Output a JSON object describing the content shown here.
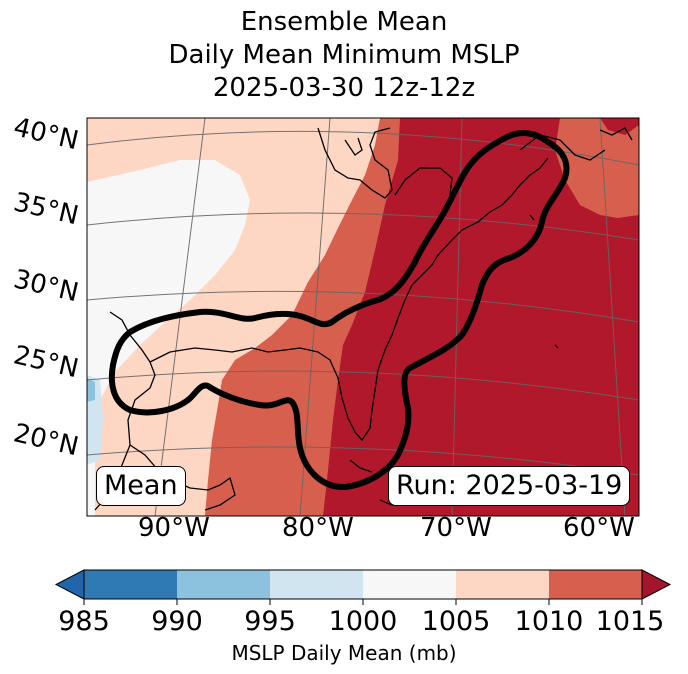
{
  "title": {
    "line1": "Ensemble Mean",
    "line2": "Daily Mean Minimum MSLP",
    "line3": "2025-03-30 12z-12z"
  },
  "map": {
    "lat_labels": [
      "40°N",
      "35°N",
      "30°N",
      "25°N",
      "20°N"
    ],
    "lon_labels": [
      "90°W",
      "80°W",
      "70°W",
      "60°W"
    ],
    "left_box_label": "Mean",
    "right_box_label": "Run: 2025-03-19",
    "colors": {
      "c985": "#2f79b5",
      "c990": "#8dc2de",
      "c995": "#d1e5f0",
      "c1000": "#f7f7f7",
      "c1005": "#fdd7c4",
      "c1010": "#d6604d",
      "c1015": "#b2182b",
      "contour": "#000000"
    }
  },
  "colorbar": {
    "ticks": [
      "985",
      "990",
      "995",
      "1000",
      "1005",
      "1010",
      "1015"
    ],
    "label": "MSLP Daily Mean (mb)",
    "colors": [
      "#2f79b5",
      "#8dc2de",
      "#d1e5f0",
      "#f7f7f7",
      "#fdd7c4",
      "#d6604d",
      "#b2182b"
    ],
    "under_color": "#2166ac",
    "over_color": "#a5152b"
  }
}
